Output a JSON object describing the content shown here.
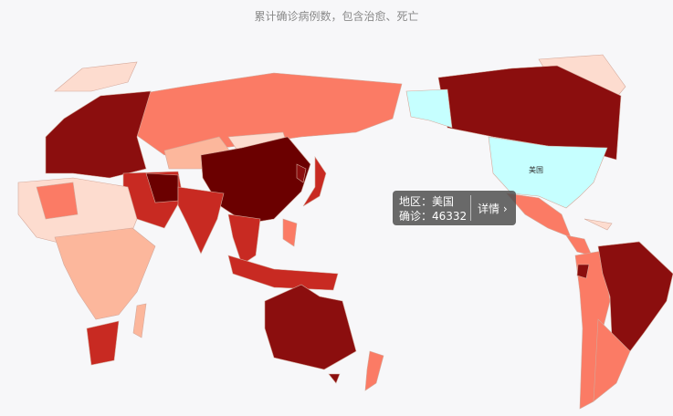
{
  "title": "累计确诊病例数，包含治愈、死亡",
  "map": {
    "colors": {
      "darkest": "#6b0000",
      "dark": "#8b0e0e",
      "red": "#c82a22",
      "salmon": "#fb7b65",
      "peach": "#fcb79c",
      "light": "#fddccf",
      "white": "#ffffff",
      "highlight": "#c6ffff"
    },
    "highlighted_region_label": "美国"
  },
  "tooltip": {
    "region_label": "地区：美国",
    "confirmed_label": "确诊：46332",
    "details_label": "详情",
    "chevron": "›"
  }
}
